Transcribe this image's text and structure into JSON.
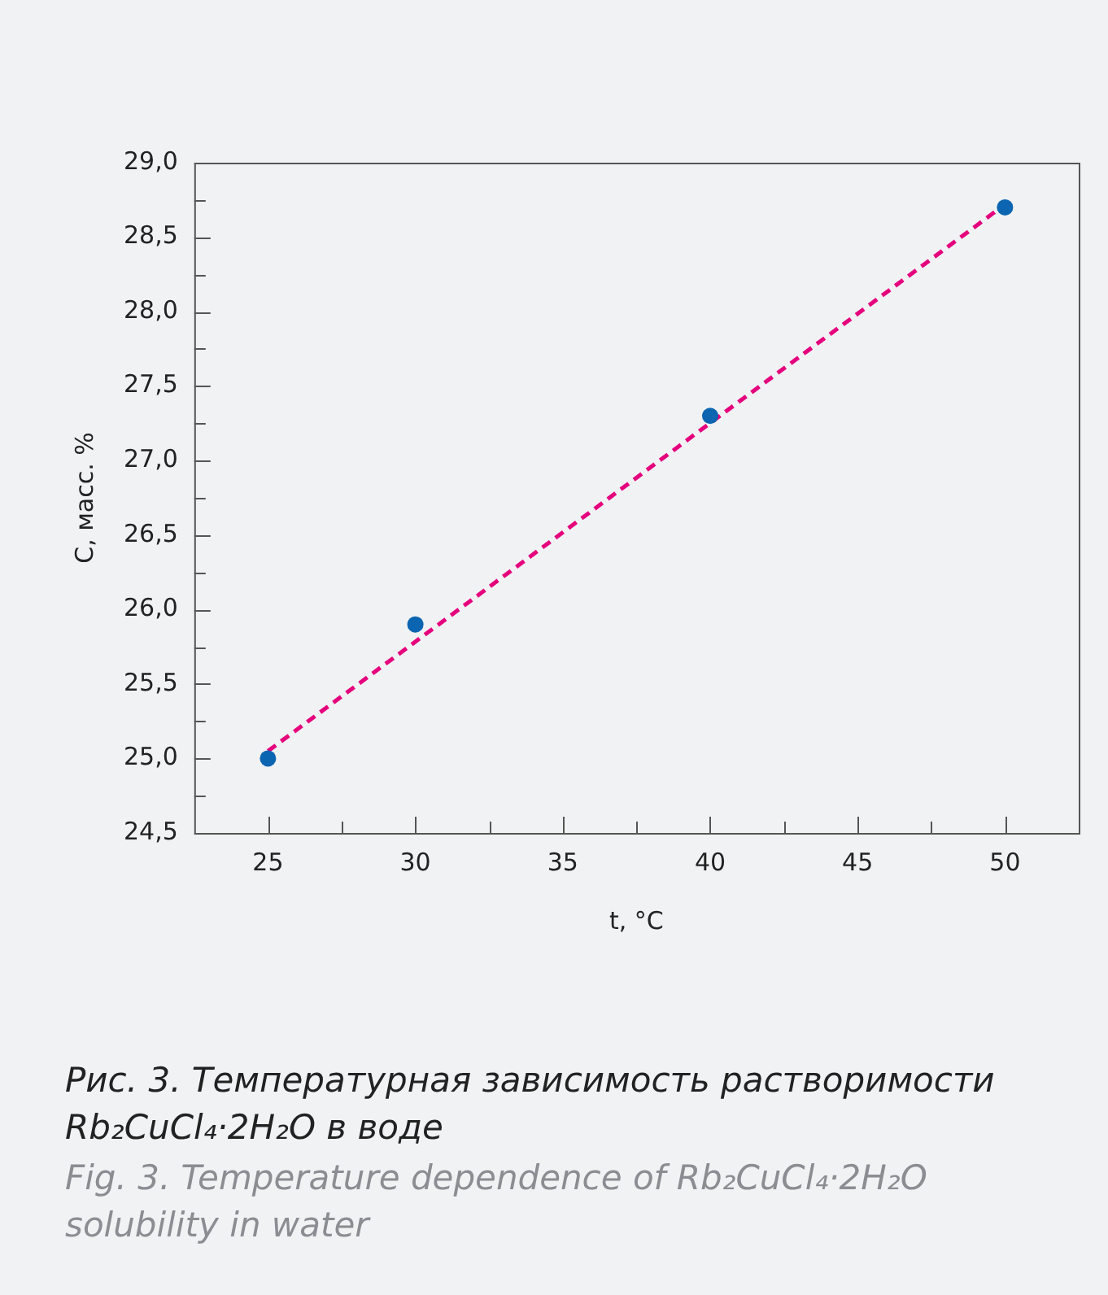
{
  "chart_data": {
    "type": "scatter",
    "xlabel": "t, °C",
    "ylabel": "C, масс. %",
    "xlim": [
      22.5,
      52.5
    ],
    "ylim": [
      24.5,
      29.0
    ],
    "xticks": [
      {
        "value": 25,
        "label": "25"
      },
      {
        "value": 27.5,
        "label": null
      },
      {
        "value": 30,
        "label": "30"
      },
      {
        "value": 32.5,
        "label": null
      },
      {
        "value": 35,
        "label": "35"
      },
      {
        "value": 37.5,
        "label": null
      },
      {
        "value": 40,
        "label": "40"
      },
      {
        "value": 42.5,
        "label": null
      },
      {
        "value": 45,
        "label": "45"
      },
      {
        "value": 47.5,
        "label": null
      },
      {
        "value": 50,
        "label": "50"
      }
    ],
    "yticks": [
      {
        "value": 24.5,
        "label": "24,5"
      },
      {
        "value": 24.75,
        "label": null
      },
      {
        "value": 25,
        "label": "25,0"
      },
      {
        "value": 25.25,
        "label": null
      },
      {
        "value": 25.5,
        "label": "25,5"
      },
      {
        "value": 25.75,
        "label": null
      },
      {
        "value": 26,
        "label": "26,0"
      },
      {
        "value": 26.25,
        "label": null
      },
      {
        "value": 26.5,
        "label": "26,5"
      },
      {
        "value": 26.75,
        "label": null
      },
      {
        "value": 27,
        "label": "27,0"
      },
      {
        "value": 27.25,
        "label": null
      },
      {
        "value": 27.5,
        "label": "27,5"
      },
      {
        "value": 27.75,
        "label": null
      },
      {
        "value": 28,
        "label": "28,0"
      },
      {
        "value": 28.25,
        "label": null
      },
      {
        "value": 28.5,
        "label": "28,5"
      },
      {
        "value": 28.75,
        "label": null
      },
      {
        "value": 29,
        "label": "29,0"
      }
    ],
    "grid": false,
    "legend": false,
    "series": [
      {
        "color": "#0b65b1",
        "marker": "circle",
        "x": [
          25,
          30,
          40,
          50
        ],
        "values": [
          25.0,
          25.9,
          27.3,
          28.7
        ]
      },
      {
        "type": "line",
        "color": "#e5007d",
        "marker": "none",
        "line_style": "dashed",
        "x": [
          25,
          50
        ],
        "values": [
          25.05,
          28.72
        ]
      }
    ],
    "annotations": [
      "Рис. 3. Температурная зависимость растворимости Rb₂CuCl₄·2H₂O в воде",
      "Fig. 3. Temperature dependence of Rb₂CuCl₄·2H₂O solubility in water"
    ]
  }
}
